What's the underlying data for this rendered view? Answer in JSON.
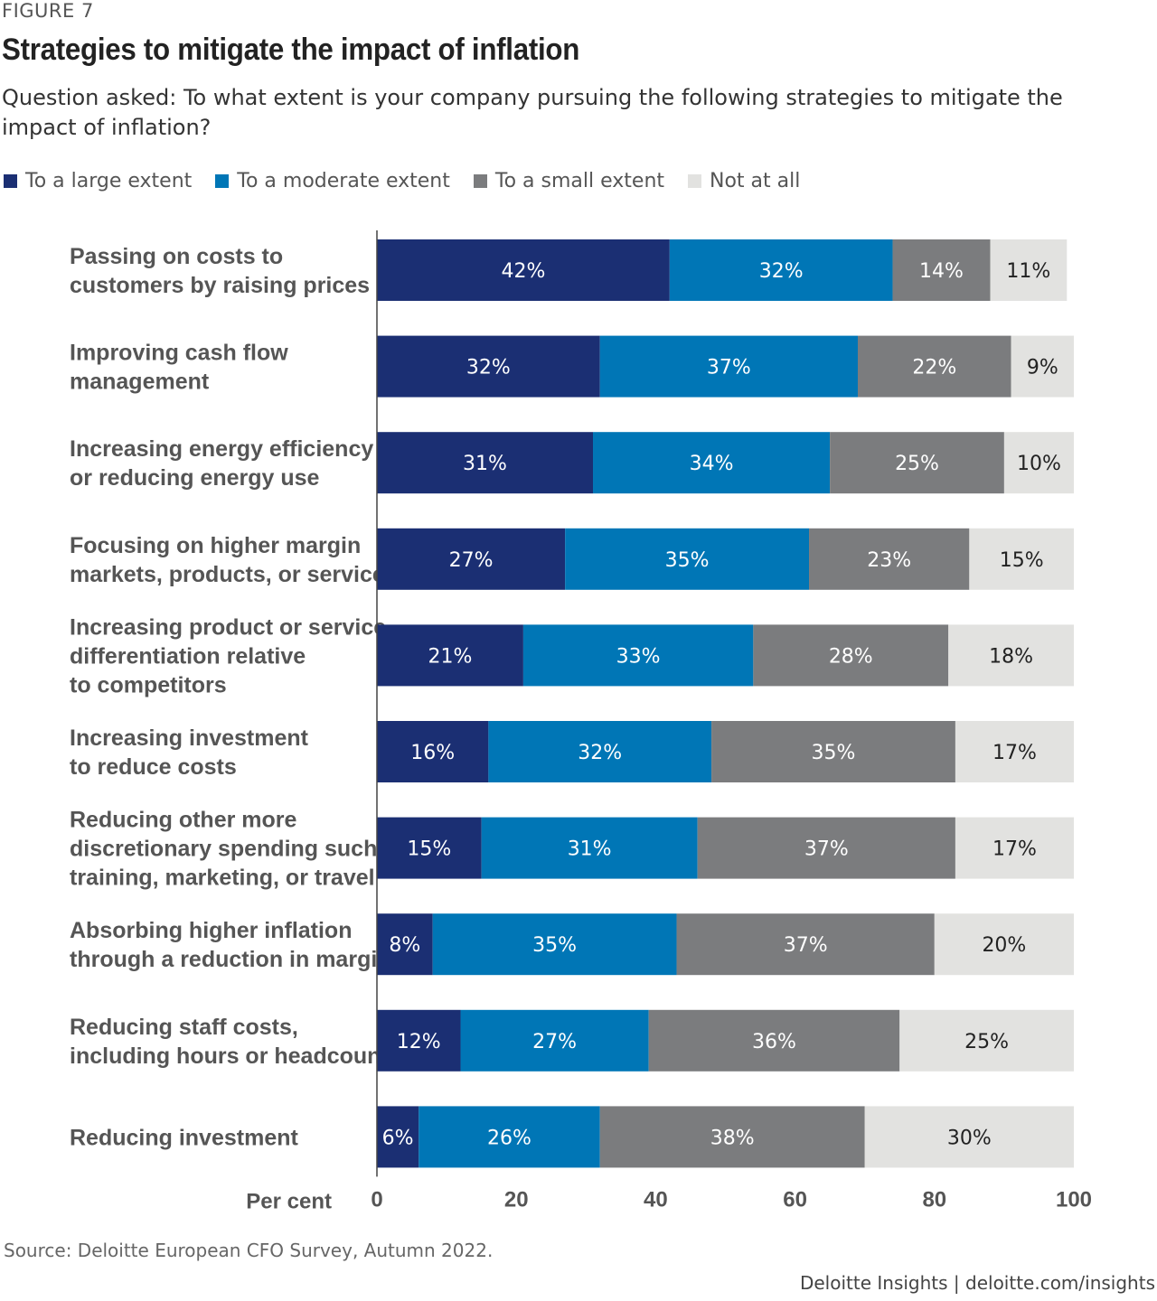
{
  "figure_label": "FIGURE 7",
  "title": "Strategies to mitigate the impact of inflation",
  "subtitle": "Question asked: To what extent is your company pursuing the following strategies to mitigate the impact of inflation?",
  "source": "Source: Deloitte European CFO Survey, Autumn 2022.",
  "brand": "Deloitte Insights | deloitte.com/insights",
  "colors": {
    "large": "#1b2f73",
    "moderate": "#0076b6",
    "small": "#7b7c7e",
    "none": "#e2e2e0"
  },
  "chart_data": {
    "type": "bar",
    "orientation": "horizontal",
    "stacked": true,
    "xlabel": "Per cent",
    "xlim": [
      0,
      100
    ],
    "xticks": [
      "0",
      "20",
      "40",
      "60",
      "80",
      "100"
    ],
    "legend_position": "top-left",
    "categories": [
      [
        "Passing on costs to",
        "customers by raising prices"
      ],
      [
        "Improving cash flow",
        "management"
      ],
      [
        "Increasing energy efficiency",
        "or reducing energy use"
      ],
      [
        "Focusing on higher margin",
        "markets, products, or services"
      ],
      [
        "Increasing product or service",
        "differentiation relative",
        "to competitors"
      ],
      [
        "Increasing investment",
        "to reduce costs"
      ],
      [
        "Reducing other more",
        "discretionary spending such as",
        "training, marketing, or travel"
      ],
      [
        "Absorbing higher inflation",
        "through a reduction in margins"
      ],
      [
        "Reducing staff costs,",
        "including hours or headcount"
      ],
      [
        "Reducing investment"
      ]
    ],
    "series": [
      {
        "name": "To a large extent",
        "color_key": "large",
        "label_color": "#ffffff",
        "values": [
          42,
          32,
          31,
          27,
          21,
          16,
          15,
          8,
          12,
          6
        ]
      },
      {
        "name": "To a moderate extent",
        "color_key": "moderate",
        "label_color": "#ffffff",
        "values": [
          32,
          37,
          34,
          35,
          33,
          32,
          31,
          35,
          27,
          26
        ]
      },
      {
        "name": "To a small extent",
        "color_key": "small",
        "label_color": "#ffffff",
        "values": [
          14,
          22,
          25,
          23,
          28,
          35,
          37,
          37,
          36,
          38
        ]
      },
      {
        "name": "Not at all",
        "color_key": "none",
        "label_color": "#222222",
        "values": [
          11,
          9,
          10,
          15,
          18,
          17,
          17,
          20,
          25,
          30
        ]
      }
    ]
  }
}
